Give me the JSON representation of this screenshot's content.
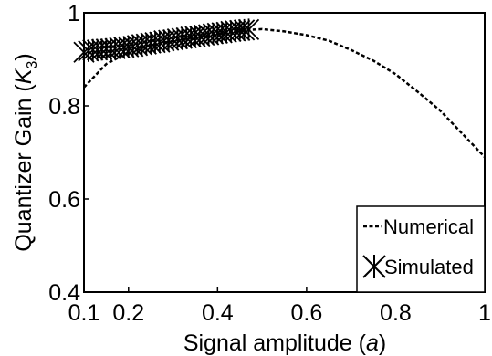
{
  "chart_data": {
    "type": "line",
    "title": "",
    "xlabel_prefix": "Signal amplitude (",
    "xlabel_var": "a",
    "xlabel_suffix": ")",
    "ylabel_prefix": "Quantizer Gain (",
    "ylabel_var": "K",
    "ylabel_sub": "3",
    "ylabel_suffix": ")",
    "xlim": [
      0.1,
      1.0
    ],
    "ylim": [
      0.4,
      1.0
    ],
    "xticks": [
      0.1,
      0.2,
      0.4,
      0.6,
      0.8,
      1
    ],
    "xtick_labels": [
      "0.1",
      "0.2",
      "0.4",
      "0.6",
      "0.8",
      "1"
    ],
    "yticks": [
      0.4,
      0.6,
      0.8,
      1.0
    ],
    "ytick_labels": [
      "0.4",
      "0.6",
      "0.8",
      "1"
    ],
    "grid": false,
    "legend_position": "bottom-right",
    "series": [
      {
        "name": "Numerical",
        "style": "dashed",
        "color": "#000000",
        "x": [
          0.1,
          0.15,
          0.2,
          0.25,
          0.3,
          0.35,
          0.4,
          0.45,
          0.5,
          0.55,
          0.6,
          0.65,
          0.7,
          0.75,
          0.8,
          0.85,
          0.9,
          0.95,
          1.0
        ],
        "y": [
          0.84,
          0.89,
          0.915,
          0.93,
          0.94,
          0.948,
          0.955,
          0.962,
          0.965,
          0.96,
          0.952,
          0.94,
          0.92,
          0.897,
          0.868,
          0.83,
          0.79,
          0.74,
          0.69
        ]
      },
      {
        "name": "Simulated",
        "style": "markers",
        "marker": "asterisk",
        "color": "#000000",
        "x": [
          0.1,
          0.11,
          0.12,
          0.13,
          0.14,
          0.15,
          0.16,
          0.17,
          0.18,
          0.19,
          0.2,
          0.21,
          0.22,
          0.23,
          0.24,
          0.25,
          0.26,
          0.27,
          0.28,
          0.29,
          0.3,
          0.31,
          0.32,
          0.33,
          0.34,
          0.35,
          0.36,
          0.37,
          0.38,
          0.39,
          0.4,
          0.41,
          0.42,
          0.43,
          0.44,
          0.45,
          0.46,
          0.47
        ],
        "y": [
          0.915,
          0.918,
          0.92,
          0.92,
          0.921,
          0.922,
          0.922,
          0.923,
          0.925,
          0.926,
          0.927,
          0.928,
          0.93,
          0.932,
          0.933,
          0.935,
          0.936,
          0.937,
          0.94,
          0.941,
          0.942,
          0.944,
          0.945,
          0.946,
          0.948,
          0.949,
          0.95,
          0.952,
          0.953,
          0.955,
          0.956,
          0.957,
          0.958,
          0.96,
          0.961,
          0.962,
          0.963,
          0.964
        ]
      }
    ]
  }
}
